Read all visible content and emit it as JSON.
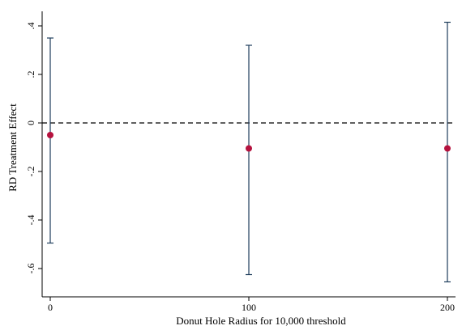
{
  "chart_data": {
    "type": "scatter",
    "title": "",
    "xlabel": "Donut Hole Radius for 10,000 threshold",
    "ylabel": "RD Treatment Effect",
    "xlim": [
      0,
      200
    ],
    "ylim": [
      -0.66,
      0.42
    ],
    "x_ticks": [
      0,
      100,
      200
    ],
    "x_tick_labels": [
      "0",
      "100",
      "200"
    ],
    "y_ticks": [
      0.4,
      0.2,
      0,
      -0.2,
      -0.4,
      -0.6
    ],
    "y_tick_labels": [
      ".4",
      ".2",
      "0",
      "-.2",
      "-.4",
      "-.6"
    ],
    "reference_line": {
      "y": 0,
      "style": "dashed"
    },
    "grid": false,
    "series": [
      {
        "points": [
          {
            "x": 0,
            "estimate": -0.05,
            "ci_low": -0.495,
            "ci_high": 0.35
          },
          {
            "x": 100,
            "estimate": -0.105,
            "ci_low": -0.625,
            "ci_high": 0.32
          },
          {
            "x": 200,
            "estimate": -0.105,
            "ci_low": -0.655,
            "ci_high": 0.415
          }
        ]
      }
    ],
    "colors": {
      "point": "#b5123e",
      "errorbar": "#1f3d5c",
      "axis": "#000000"
    }
  }
}
